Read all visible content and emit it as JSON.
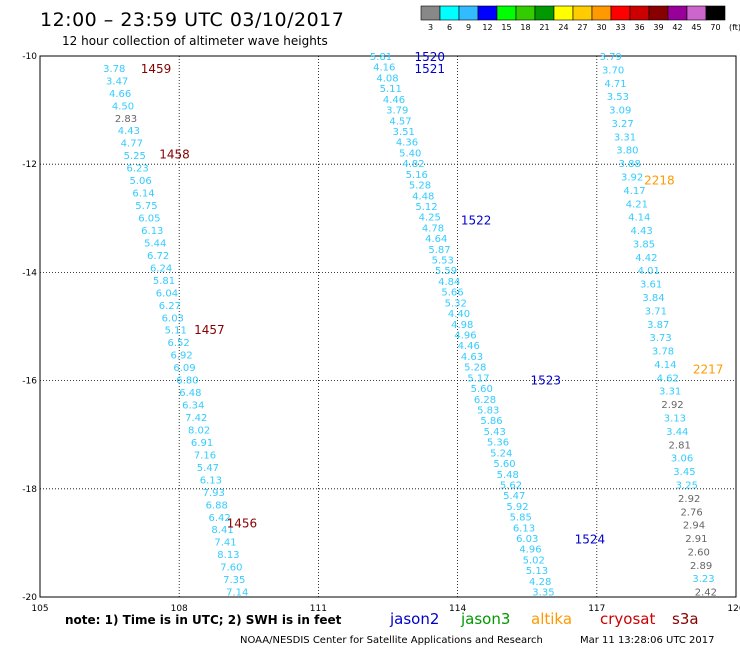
{
  "header": {
    "title": "12:00 – 23:59 UTC 03/10/2017",
    "subtitle": "12 hour collection of altimeter wave heights"
  },
  "color_scale": {
    "labels": [
      "3",
      "6",
      "9",
      "12",
      "15",
      "18",
      "21",
      "24",
      "27",
      "30",
      "33",
      "36",
      "39",
      "42",
      "45",
      "70"
    ],
    "unit": "(ft)",
    "colors": [
      "#888888",
      "#00ffff",
      "#33bbff",
      "#0000ff",
      "#00ff00",
      "#33cc00",
      "#009900",
      "#ffff00",
      "#ffcc00",
      "#ff9900",
      "#ff0000",
      "#cc0000",
      "#880000",
      "#990099",
      "#cc66cc",
      "#000000"
    ]
  },
  "satellites": [
    {
      "name": "jason2",
      "color": "#0000cc"
    },
    {
      "name": "jason3",
      "color": "#009900"
    },
    {
      "name": "altika",
      "color": "#ff9900"
    },
    {
      "name": "cryosat",
      "color": "#cc0000"
    },
    {
      "name": "s3a",
      "color": "#880000"
    }
  ],
  "footer": {
    "note": "note: 1) Time is in UTC; 2) SWH is in feet",
    "credit": "NOAA/NESDIS Center for Satellite Applications and Research",
    "timestamp": "Mar 11 13:28:06 UTC 2017"
  },
  "chart_data": {
    "type": "scatter",
    "xlabel": "",
    "ylabel": "",
    "xlim": [
      105,
      120
    ],
    "ylim": [
      -20,
      -10
    ],
    "xticks": [
      105,
      108,
      111,
      114,
      117,
      120
    ],
    "yticks": [
      -10,
      -12,
      -14,
      -16,
      -18,
      -20
    ],
    "xtick_labels": [
      "105",
      "108",
      "111",
      "114",
      "117",
      "120"
    ],
    "ytick_labels": [
      "-10",
      "-12",
      "-14",
      "-16",
      "-18",
      "-20"
    ],
    "grid": true,
    "tracks": [
      {
        "x_start": 106.6,
        "x_end": 109.25,
        "y_start": -10.22,
        "y_end": -19.9,
        "values": [
          "3.78",
          "3.47",
          "4.66",
          "4.50",
          "2.83",
          "4.43",
          "4.77",
          "5.25",
          "6.23",
          "5.06",
          "6.14",
          "5.75",
          "6.05",
          "6.13",
          "5.44",
          "6.72",
          "6.24",
          "5.81",
          "6.04",
          "6.27",
          "6.03",
          "5.11",
          "6.52",
          "6.92",
          "6.09",
          "6.80",
          "6.48",
          "6.34",
          "7.42",
          "8.02",
          "6.91",
          "7.16",
          "5.47",
          "6.13",
          "7.93",
          "6.88",
          "6.42",
          "8.41",
          "7.41",
          "8.13",
          "7.60",
          "7.35",
          "7.14"
        ],
        "colors": [
          "#33ccff",
          "#33ccff",
          "#33ccff",
          "#33ccff",
          "#666666",
          "#33ccff",
          "#33ccff",
          "#33ccff",
          "#33ccff",
          "#33ccff",
          "#33ccff",
          "#33ccff",
          "#33ccff",
          "#33ccff",
          "#33ccff",
          "#33ccff",
          "#33ccff",
          "#33ccff",
          "#33ccff",
          "#33ccff",
          "#33ccff",
          "#33ccff",
          "#33ccff",
          "#33ccff",
          "#33ccff",
          "#33ccff",
          "#33ccff",
          "#33ccff",
          "#33ccff",
          "#33ccff",
          "#33ccff",
          "#33ccff",
          "#33ccff",
          "#33ccff",
          "#33ccff",
          "#33ccff",
          "#33ccff",
          "#33ccff",
          "#33ccff",
          "#33ccff",
          "#33ccff",
          "#33ccff",
          "#33ccff"
        ]
      },
      {
        "x_start": 112.35,
        "x_end": 115.85,
        "y_start": -10.0,
        "y_end": -19.9,
        "values": [
          "5.81",
          "4.16",
          "4.08",
          "5.11",
          "4.46",
          "3.79",
          "4.57",
          "3.51",
          "4.36",
          "5.40",
          "4.82",
          "5.16",
          "5.28",
          "4.48",
          "5.12",
          "4.25",
          "4.78",
          "4.64",
          "5.87",
          "5.53",
          "5.59",
          "4.84",
          "5.66",
          "5.32",
          "4.40",
          "4.98",
          "4.96",
          "4.46",
          "4.63",
          "5.28",
          "5.17",
          "5.60",
          "6.28",
          "5.83",
          "5.86",
          "5.43",
          "5.36",
          "5.24",
          "5.60",
          "5.48",
          "5.62",
          "5.47",
          "5.92",
          "5.85",
          "6.13",
          "6.03",
          "4.96",
          "5.02",
          "5.13",
          "4.28",
          "3.35"
        ],
        "colors": []
      },
      {
        "x_start": 117.3,
        "x_end": 119.35,
        "y_start": -10.0,
        "y_end": -19.9,
        "values": [
          "3.79",
          "3.70",
          "4.71",
          "3.53",
          "3.09",
          "3.27",
          "3.31",
          "3.80",
          "3.88",
          "3.92",
          "4.17",
          "4.21",
          "4.14",
          "4.43",
          "3.85",
          "4.42",
          "4.01",
          "3.61",
          "3.84",
          "3.71",
          "3.87",
          "3.73",
          "3.78",
          "4.14",
          "4.62",
          "3.31",
          "2.92",
          "3.13",
          "3.44",
          "2.81",
          "3.06",
          "3.45",
          "3.25",
          "2.92",
          "2.76",
          "2.94",
          "2.91",
          "2.60",
          "2.89",
          "3.23",
          "2.42"
        ],
        "colors": [
          "#33ccff",
          "#33ccff",
          "#33ccff",
          "#33ccff",
          "#33ccff",
          "#33ccff",
          "#33ccff",
          "#33ccff",
          "#33ccff",
          "#33ccff",
          "#33ccff",
          "#33ccff",
          "#33ccff",
          "#33ccff",
          "#33ccff",
          "#33ccff",
          "#33ccff",
          "#33ccff",
          "#33ccff",
          "#33ccff",
          "#33ccff",
          "#33ccff",
          "#33ccff",
          "#33ccff",
          "#33ccff",
          "#33ccff",
          "#666666",
          "#33ccff",
          "#33ccff",
          "#666666",
          "#33ccff",
          "#33ccff",
          "#33ccff",
          "#666666",
          "#666666",
          "#666666",
          "#666666",
          "#666666",
          "#666666",
          "#33ccff",
          "#666666"
        ]
      }
    ],
    "pass_labels": [
      {
        "label": "1459",
        "x": 107.5,
        "y": -10.22,
        "color": "#880000"
      },
      {
        "label": "1458",
        "x": 107.9,
        "y": -11.8,
        "color": "#880000"
      },
      {
        "label": "1457",
        "x": 108.65,
        "y": -15.05,
        "color": "#880000"
      },
      {
        "label": "1456",
        "x": 109.35,
        "y": -18.62,
        "color": "#880000"
      },
      {
        "label": "1520",
        "x": 113.4,
        "y": -10.0,
        "color": "#0000cc"
      },
      {
        "label": "1521",
        "x": 113.4,
        "y": -10.22,
        "color": "#0000cc"
      },
      {
        "label": "1522",
        "x": 114.4,
        "y": -13.02,
        "color": "#0000cc"
      },
      {
        "label": "1523",
        "x": 115.9,
        "y": -15.98,
        "color": "#0000cc"
      },
      {
        "label": "1524",
        "x": 116.85,
        "y": -18.92,
        "color": "#0000cc"
      },
      {
        "label": "2218",
        "x": 118.35,
        "y": -12.28,
        "color": "#ff9900"
      },
      {
        "label": "2217",
        "x": 119.4,
        "y": -15.78,
        "color": "#ff9900"
      }
    ]
  }
}
